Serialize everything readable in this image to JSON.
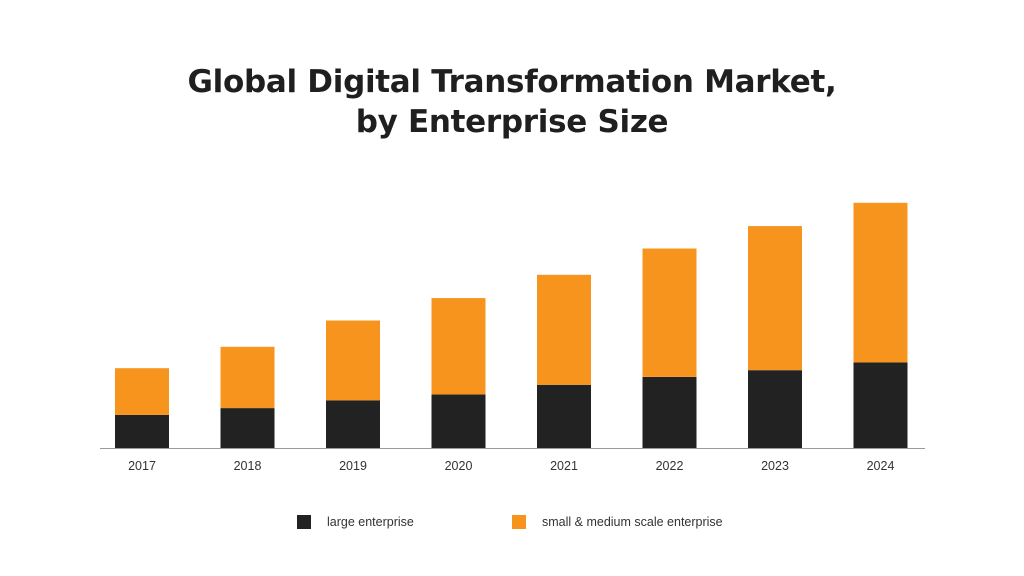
{
  "chart_data": {
    "type": "bar",
    "stacked": true,
    "title": "Global Digital Transformation Market,",
    "title_line2": "by Enterprise Size",
    "xlabel": "",
    "ylabel": "",
    "grid": false,
    "categories": [
      "2017",
      "2018",
      "2019",
      "2020",
      "2021",
      "2022",
      "2023",
      "2024"
    ],
    "series": [
      {
        "name": "large enterprise",
        "color": "#222222",
        "values": [
          34,
          41,
          49,
          55,
          65,
          73,
          80,
          88
        ]
      },
      {
        "name": "small & medium scale enterprise",
        "color": "#F7941D",
        "values": [
          48,
          63,
          82,
          99,
          113,
          132,
          148,
          164
        ]
      }
    ],
    "ylim": [
      0,
      260
    ],
    "legend_position": "bottom"
  }
}
